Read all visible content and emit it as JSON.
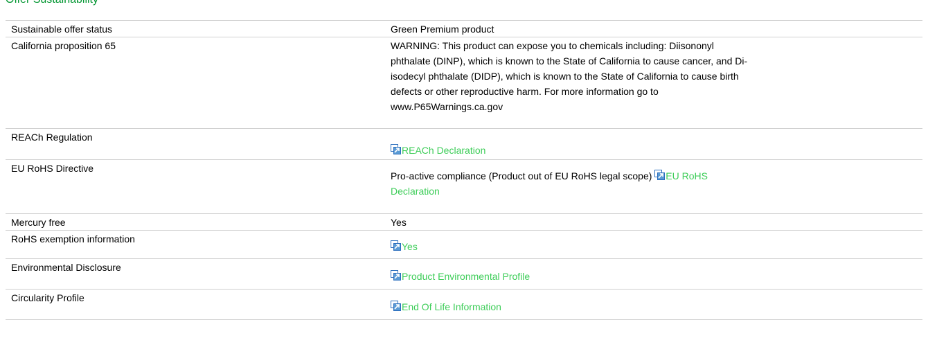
{
  "header": {
    "title": "Offer Sustainability"
  },
  "table": {
    "rows": [
      {
        "label": "Sustainable offer status",
        "text": "Green Premium product"
      },
      {
        "label": "California proposition 65",
        "text": "WARNING: This product can expose you to chemicals including: Diisononyl phthalate (DINP), which is known to the State of California to cause cancer, and Di-isodecyl phthalate (DIDP), which is known to the State of California to cause birth defects or other reproductive harm. For more information go to www.P65Warnings.ca.gov"
      },
      {
        "label": "REACh Regulation",
        "link": "REACh Declaration"
      },
      {
        "label": "EU RoHS Directive",
        "text": "Pro-active compliance (Product out of EU RoHS legal scope)",
        "link": "EU RoHS Declaration"
      },
      {
        "label": "Mercury free",
        "text": "Yes"
      },
      {
        "label": "RoHS exemption information",
        "link": "Yes"
      },
      {
        "label": "Environmental Disclosure",
        "link": "Product Environmental Profile"
      },
      {
        "label": "Circularity Profile",
        "link": "End Of Life Information"
      }
    ]
  }
}
